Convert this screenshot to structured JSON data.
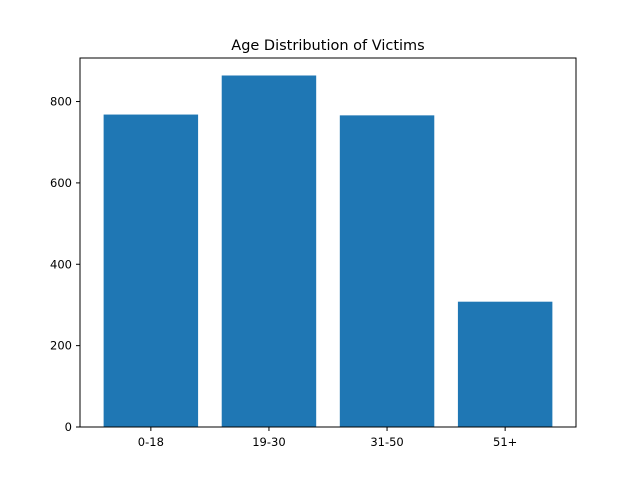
{
  "chart_data": {
    "type": "bar",
    "title": "Age Distribution of Victims",
    "xlabel": "",
    "ylabel": "",
    "categories": [
      "0-18",
      "19-30",
      "31-50",
      "51+"
    ],
    "values": [
      768,
      864,
      766,
      308
    ],
    "ylim": [
      0,
      907
    ],
    "yticks": [
      0,
      200,
      400,
      600,
      800
    ],
    "bar_color": "#1f77b4",
    "grid": false,
    "legend": "none"
  }
}
